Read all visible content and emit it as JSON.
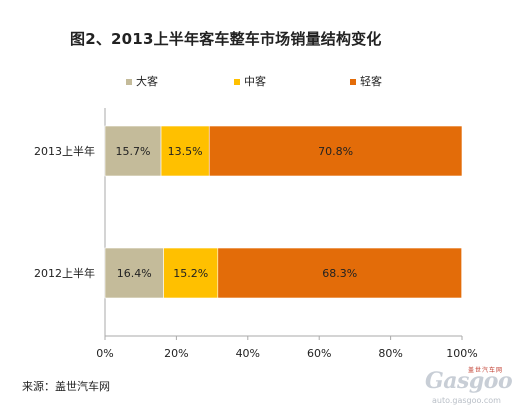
{
  "chart_data": {
    "type": "bar",
    "orientation": "horizontal",
    "stacked": true,
    "percent": true,
    "title": "图2、2013上半年客车整车市场销量结构变化",
    "categories": [
      "2013上半年",
      "2012上半年"
    ],
    "series": [
      {
        "name": "大客",
        "color": "#c4bb9a",
        "values": [
          15.7,
          16.4
        ],
        "labels": [
          "15.7%",
          "16.4%"
        ]
      },
      {
        "name": "中客",
        "color": "#ffc000",
        "values": [
          13.5,
          15.2
        ],
        "labels": [
          "13.5%",
          "15.2%"
        ]
      },
      {
        "name": "轻客",
        "color": "#e36c09",
        "values": [
          70.8,
          68.3
        ],
        "labels": [
          "70.8%",
          "68.3%"
        ]
      }
    ],
    "xlim": [
      0,
      100
    ],
    "xticks": [
      "0%",
      "20%",
      "40%",
      "60%",
      "80%",
      "100%"
    ],
    "grid": false,
    "legend": "top"
  },
  "source": "来源：盖世汽车网",
  "watermark": {
    "logo": "Gasgoo",
    "tagline": "盖世汽车网",
    "url": "auto.gasgoo.com"
  }
}
